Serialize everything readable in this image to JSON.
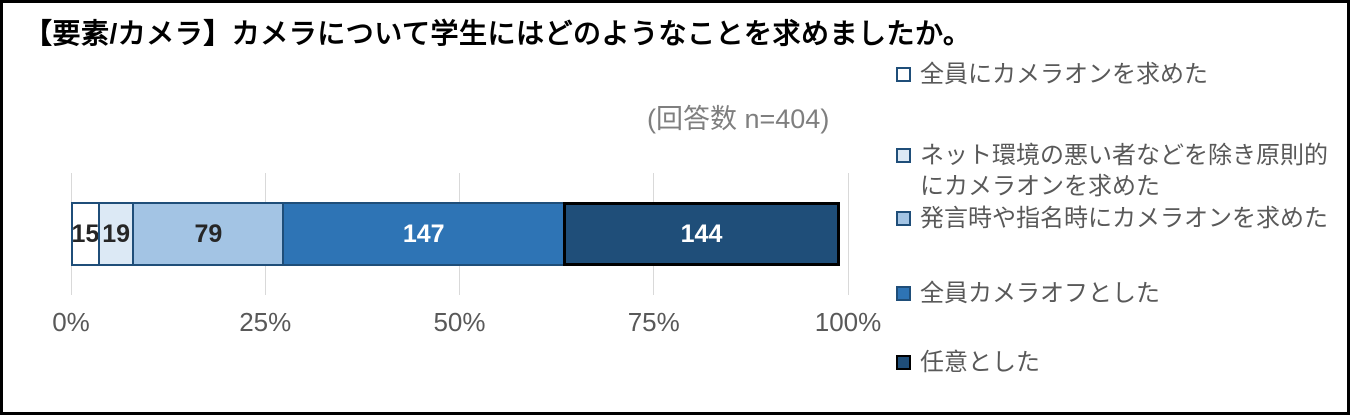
{
  "chart_data": {
    "type": "bar",
    "variant": "horizontal-stacked",
    "title": "【要素/カメラ】カメラについて学生にはどのようなことを求めましたか。",
    "respondents_note": "(回答数 n=404)",
    "total_responses": 404,
    "xlim": [
      0,
      100
    ],
    "x_ticks": [
      "0%",
      "25%",
      "50%",
      "75%",
      "100%"
    ],
    "grid": true,
    "legend_position": "right",
    "segments": [
      {
        "label": "全員にカメラオンを求めた",
        "value": 15,
        "fill": "#FFFFFF",
        "border": "#1F4E79",
        "value_color": "#262626"
      },
      {
        "label": "ネット環境の悪い者などを除き原則的\nにカメラオンを求めた",
        "value": 19,
        "fill": "#DCE9F5",
        "border": "#1F4E79",
        "value_color": "#262626"
      },
      {
        "label": "発言時や指名時にカメラオンを求めた",
        "value": 79,
        "fill": "#A3C4E4",
        "border": "#1F4E79",
        "value_color": "#262626"
      },
      {
        "label": "全員カメラオフとした",
        "value": 147,
        "fill": "#2E74B5",
        "border": "#1F4E79",
        "value_color": "#FFFFFF"
      },
      {
        "label": "任意とした",
        "value": 144,
        "fill": "#1F4E79",
        "border": "#000000",
        "value_color": "#FFFFFF"
      }
    ],
    "colors": {
      "gridline": "#D9D9D9",
      "axis_text": "#595959",
      "legend_text": "#595959",
      "note_text": "#7F7F7F",
      "title_text": "#000000"
    }
  }
}
